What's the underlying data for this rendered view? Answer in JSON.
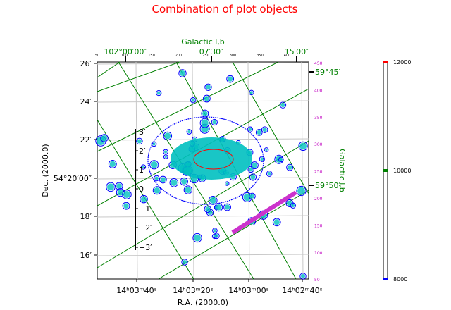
{
  "chart_data": {
    "type": "scatter",
    "title": "Combination of plot objects",
    "xlabel": "R.A. (2000.0)",
    "ylabel": "Dec. (2000.0)",
    "top_label": "Galactic l,b",
    "right_label": "Galactic l,b",
    "x_ticks": [
      "14ʰ03ᵐ40ˢ",
      "14ʰ03ᵐ20ˢ",
      "14ʰ03ᵐ00ˢ",
      "14ʰ02ᵐ40ˢ"
    ],
    "y_ticks": [
      "26′",
      "24′",
      "22′",
      "54°20′00″",
      "18′",
      "16′"
    ],
    "top_galactic_ticks": [
      "102°00′00″",
      "07′30″",
      "15′00″"
    ],
    "right_galactic_ticks": [
      "59°45′",
      "59°50′"
    ],
    "top_pixel_ticks": [
      "50",
      "100",
      "150",
      "200",
      "250",
      "300",
      "350",
      "400"
    ],
    "right_pixel_ticks": [
      "450",
      "400",
      "350",
      "300",
      "250",
      "200",
      "150",
      "100",
      "50"
    ],
    "ruler_labels": [
      "3′",
      "2′",
      "1′",
      "0",
      "−1",
      "−2′",
      "−3′"
    ],
    "colorbar": {
      "ticks": [
        "12000",
        "10000",
        "8000"
      ],
      "range": [
        8000,
        12000
      ]
    },
    "contour_colors": [
      "#0000ff",
      "#00c0c0",
      "#ff0000"
    ],
    "ruler_color": "#cc33cc"
  }
}
